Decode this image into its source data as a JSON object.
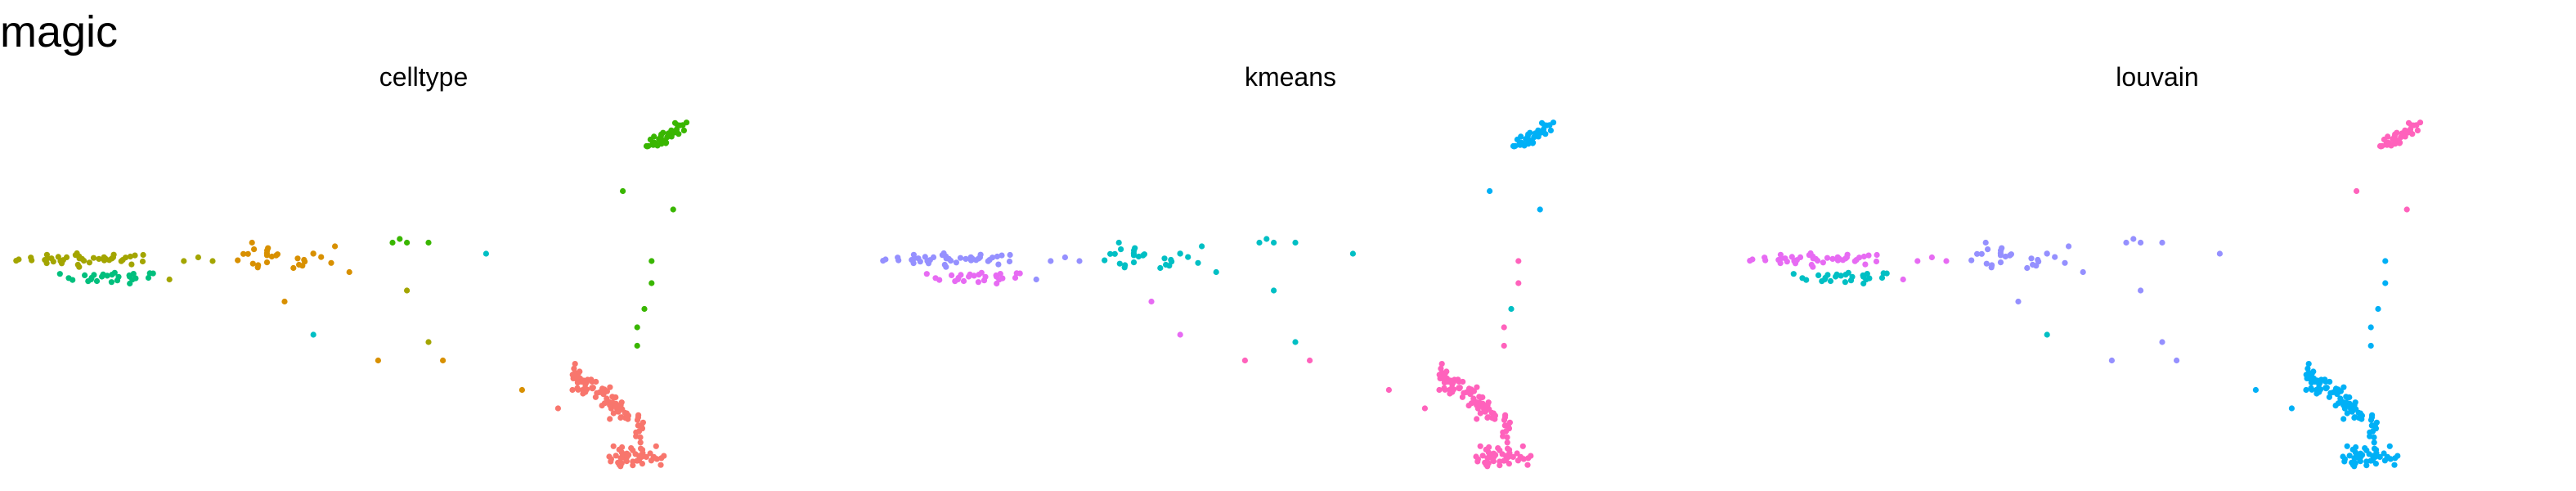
{
  "figure": {
    "title": "magic"
  },
  "chart_data": [
    {
      "type": "scatter",
      "title": "celltype",
      "xlabel": "",
      "ylabel": "",
      "grid": false,
      "legend": "none",
      "xlim": [
        0,
        100
      ],
      "ylim": [
        0,
        100
      ],
      "clusters": [
        {
          "color": "#A3A500",
          "cx": 8,
          "cy": 58.5,
          "sx": 5,
          "sy": 0.8,
          "n": 42
        },
        {
          "color": "#00BF7D",
          "cx": 11,
          "cy": 53.5,
          "sx": 3.5,
          "sy": 0.8,
          "n": 26
        },
        {
          "color": "#D89000",
          "cx": 33,
          "cy": 58.5,
          "sx": 4,
          "sy": 1.8,
          "n": 24
        },
        {
          "color": "#39B600",
          "cx": 88,
          "cy": 92,
          "sx": 2.5,
          "sy": 3,
          "n": 40
        },
        {
          "color": "#F8766D",
          "cx": 80,
          "cy": 20,
          "sx": 5,
          "sy": 8,
          "n": 85
        },
        {
          "color": "#F8766D",
          "cx": 83.5,
          "cy": 5,
          "sx": 2.2,
          "sy": 1.5,
          "n": 45
        }
      ],
      "points": [
        {
          "x": 21,
          "y": 58,
          "color": "#A3A500"
        },
        {
          "x": 23,
          "y": 59,
          "color": "#A3A500"
        },
        {
          "x": 19,
          "y": 53,
          "color": "#A3A500"
        },
        {
          "x": 25,
          "y": 58,
          "color": "#A3A500"
        },
        {
          "x": 35,
          "y": 47,
          "color": "#D89000"
        },
        {
          "x": 39,
          "y": 60,
          "color": "#D89000"
        },
        {
          "x": 42,
          "y": 62,
          "color": "#D89000"
        },
        {
          "x": 44,
          "y": 55,
          "color": "#D89000"
        },
        {
          "x": 37,
          "y": 57,
          "color": "#D89000"
        },
        {
          "x": 50,
          "y": 63,
          "color": "#39B600"
        },
        {
          "x": 51,
          "y": 64,
          "color": "#39B600"
        },
        {
          "x": 52,
          "y": 63,
          "color": "#39B600"
        },
        {
          "x": 55,
          "y": 63,
          "color": "#39B600"
        },
        {
          "x": 63,
          "y": 60,
          "color": "#00BFC4"
        },
        {
          "x": 48,
          "y": 31,
          "color": "#D89000"
        },
        {
          "x": 52,
          "y": 50,
          "color": "#A3A500"
        },
        {
          "x": 57,
          "y": 31,
          "color": "#D89000"
        },
        {
          "x": 55,
          "y": 36,
          "color": "#A3A500"
        },
        {
          "x": 39,
          "y": 38,
          "color": "#00BFC4"
        },
        {
          "x": 68,
          "y": 23,
          "color": "#D89000"
        },
        {
          "x": 82,
          "y": 77,
          "color": "#39B600"
        },
        {
          "x": 89,
          "y": 72,
          "color": "#39B600"
        },
        {
          "x": 86,
          "y": 58,
          "color": "#39B600"
        },
        {
          "x": 86,
          "y": 52,
          "color": "#39B600"
        },
        {
          "x": 85,
          "y": 45,
          "color": "#39B600"
        },
        {
          "x": 84,
          "y": 40,
          "color": "#39B600"
        },
        {
          "x": 84,
          "y": 35,
          "color": "#39B600"
        },
        {
          "x": 73,
          "y": 18,
          "color": "#F8766D"
        },
        {
          "x": 76,
          "y": 28,
          "color": "#F8766D"
        },
        {
          "x": 75,
          "y": 23,
          "color": "#F8766D"
        }
      ]
    },
    {
      "type": "scatter",
      "title": "kmeans",
      "xlabel": "",
      "ylabel": "",
      "grid": false,
      "legend": "none",
      "xlim": [
        0,
        100
      ],
      "ylim": [
        0,
        100
      ],
      "clusters": [
        {
          "color": "#9590FF",
          "cx": 8,
          "cy": 58.5,
          "sx": 5,
          "sy": 0.8,
          "n": 42
        },
        {
          "color": "#E76BF3",
          "cx": 11,
          "cy": 53.5,
          "sx": 3.5,
          "sy": 0.8,
          "n": 26
        },
        {
          "color": "#00BFC4",
          "cx": 33,
          "cy": 58.5,
          "sx": 4,
          "sy": 1.8,
          "n": 24
        },
        {
          "color": "#00B0F6",
          "cx": 88,
          "cy": 92,
          "sx": 2.5,
          "sy": 3,
          "n": 40
        },
        {
          "color": "#FF62BC",
          "cx": 80,
          "cy": 20,
          "sx": 5,
          "sy": 8,
          "n": 85
        },
        {
          "color": "#FF62BC",
          "cx": 83.5,
          "cy": 5,
          "sx": 2.2,
          "sy": 1.5,
          "n": 45
        }
      ],
      "points": [
        {
          "x": 21,
          "y": 58,
          "color": "#9590FF"
        },
        {
          "x": 23,
          "y": 59,
          "color": "#9590FF"
        },
        {
          "x": 19,
          "y": 53,
          "color": "#9590FF"
        },
        {
          "x": 25,
          "y": 58,
          "color": "#9590FF"
        },
        {
          "x": 35,
          "y": 47,
          "color": "#E76BF3"
        },
        {
          "x": 39,
          "y": 60,
          "color": "#00BFC4"
        },
        {
          "x": 42,
          "y": 62,
          "color": "#00BFC4"
        },
        {
          "x": 44,
          "y": 55,
          "color": "#00BFC4"
        },
        {
          "x": 37,
          "y": 57,
          "color": "#00BFC4"
        },
        {
          "x": 50,
          "y": 63,
          "color": "#00BFC4"
        },
        {
          "x": 51,
          "y": 64,
          "color": "#00BFC4"
        },
        {
          "x": 52,
          "y": 63,
          "color": "#00BFC4"
        },
        {
          "x": 55,
          "y": 63,
          "color": "#00BFC4"
        },
        {
          "x": 63,
          "y": 60,
          "color": "#00BFC4"
        },
        {
          "x": 48,
          "y": 31,
          "color": "#FF62BC"
        },
        {
          "x": 52,
          "y": 50,
          "color": "#00BFC4"
        },
        {
          "x": 57,
          "y": 31,
          "color": "#FF62BC"
        },
        {
          "x": 55,
          "y": 36,
          "color": "#00BFC4"
        },
        {
          "x": 39,
          "y": 38,
          "color": "#E76BF3"
        },
        {
          "x": 68,
          "y": 23,
          "color": "#FF62BC"
        },
        {
          "x": 82,
          "y": 77,
          "color": "#00B0F6"
        },
        {
          "x": 89,
          "y": 72,
          "color": "#00B0F6"
        },
        {
          "x": 86,
          "y": 58,
          "color": "#FF62BC"
        },
        {
          "x": 86,
          "y": 52,
          "color": "#FF62BC"
        },
        {
          "x": 85,
          "y": 45,
          "color": "#00BFC4"
        },
        {
          "x": 84,
          "y": 40,
          "color": "#FF62BC"
        },
        {
          "x": 84,
          "y": 35,
          "color": "#FF62BC"
        },
        {
          "x": 73,
          "y": 18,
          "color": "#FF62BC"
        },
        {
          "x": 76,
          "y": 28,
          "color": "#FF62BC"
        },
        {
          "x": 75,
          "y": 23,
          "color": "#FF62BC"
        }
      ]
    },
    {
      "type": "scatter",
      "title": "louvain",
      "xlabel": "",
      "ylabel": "",
      "grid": false,
      "legend": "none",
      "xlim": [
        0,
        100
      ],
      "ylim": [
        0,
        100
      ],
      "clusters": [
        {
          "color": "#E76BF3",
          "cx": 8,
          "cy": 58.5,
          "sx": 5,
          "sy": 0.8,
          "n": 42
        },
        {
          "color": "#00BFC4",
          "cx": 11,
          "cy": 53.5,
          "sx": 3.5,
          "sy": 0.8,
          "n": 26
        },
        {
          "color": "#9590FF",
          "cx": 33,
          "cy": 58.5,
          "sx": 4,
          "sy": 1.8,
          "n": 24
        },
        {
          "color": "#FF62BC",
          "cx": 88,
          "cy": 92,
          "sx": 2.5,
          "sy": 3,
          "n": 40
        },
        {
          "color": "#00B0F6",
          "cx": 80,
          "cy": 20,
          "sx": 5,
          "sy": 8,
          "n": 85
        },
        {
          "color": "#00B0F6",
          "cx": 83.5,
          "cy": 5,
          "sx": 2.2,
          "sy": 1.5,
          "n": 45
        }
      ],
      "points": [
        {
          "x": 21,
          "y": 58,
          "color": "#E76BF3"
        },
        {
          "x": 23,
          "y": 59,
          "color": "#E76BF3"
        },
        {
          "x": 19,
          "y": 53,
          "color": "#E76BF3"
        },
        {
          "x": 25,
          "y": 58,
          "color": "#E76BF3"
        },
        {
          "x": 35,
          "y": 47,
          "color": "#9590FF"
        },
        {
          "x": 39,
          "y": 60,
          "color": "#9590FF"
        },
        {
          "x": 42,
          "y": 62,
          "color": "#9590FF"
        },
        {
          "x": 44,
          "y": 55,
          "color": "#9590FF"
        },
        {
          "x": 37,
          "y": 57,
          "color": "#9590FF"
        },
        {
          "x": 50,
          "y": 63,
          "color": "#9590FF"
        },
        {
          "x": 51,
          "y": 64,
          "color": "#9590FF"
        },
        {
          "x": 52,
          "y": 63,
          "color": "#9590FF"
        },
        {
          "x": 55,
          "y": 63,
          "color": "#9590FF"
        },
        {
          "x": 63,
          "y": 60,
          "color": "#9590FF"
        },
        {
          "x": 48,
          "y": 31,
          "color": "#9590FF"
        },
        {
          "x": 52,
          "y": 50,
          "color": "#9590FF"
        },
        {
          "x": 57,
          "y": 31,
          "color": "#9590FF"
        },
        {
          "x": 55,
          "y": 36,
          "color": "#9590FF"
        },
        {
          "x": 39,
          "y": 38,
          "color": "#00BFC4"
        },
        {
          "x": 68,
          "y": 23,
          "color": "#00B0F6"
        },
        {
          "x": 82,
          "y": 77,
          "color": "#FF62BC"
        },
        {
          "x": 89,
          "y": 72,
          "color": "#FF62BC"
        },
        {
          "x": 86,
          "y": 58,
          "color": "#00B0F6"
        },
        {
          "x": 86,
          "y": 52,
          "color": "#00B0F6"
        },
        {
          "x": 85,
          "y": 45,
          "color": "#00B0F6"
        },
        {
          "x": 84,
          "y": 40,
          "color": "#00B0F6"
        },
        {
          "x": 84,
          "y": 35,
          "color": "#00B0F6"
        },
        {
          "x": 73,
          "y": 18,
          "color": "#00B0F6"
        },
        {
          "x": 76,
          "y": 28,
          "color": "#00B0F6"
        },
        {
          "x": 75,
          "y": 23,
          "color": "#00B0F6"
        }
      ]
    }
  ]
}
